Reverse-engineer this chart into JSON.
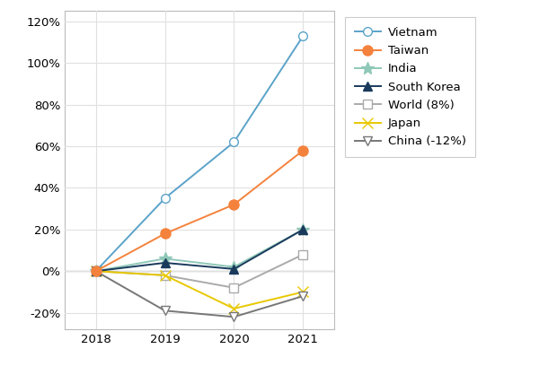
{
  "years": [
    2018,
    2019,
    2020,
    2021
  ],
  "series": [
    {
      "label": "Vietnam",
      "values": [
        0,
        35,
        62,
        113
      ],
      "color": "#5ba3c9",
      "marker": "o",
      "markerfacecolor": "white",
      "markersize": 7,
      "linewidth": 1.4,
      "zorder": 5
    },
    {
      "label": "Taiwan",
      "values": [
        0,
        18,
        32,
        58
      ],
      "color": "#f4823c",
      "marker": "o",
      "markerfacecolor": "#f4823c",
      "markersize": 8,
      "linewidth": 1.4,
      "zorder": 5
    },
    {
      "label": "India",
      "values": [
        0,
        6,
        2,
        20
      ],
      "color": "#8fc8b8",
      "marker": "*",
      "markerfacecolor": "#8fc8b8",
      "markersize": 10,
      "linewidth": 1.4,
      "zorder": 4
    },
    {
      "label": "South Korea",
      "values": [
        0,
        4,
        1,
        20
      ],
      "color": "#1a3a5c",
      "marker": "^",
      "markerfacecolor": "#1a3a5c",
      "markersize": 7,
      "linewidth": 1.4,
      "zorder": 4
    },
    {
      "label": "World (8%)",
      "values": [
        0,
        -2,
        -8,
        8
      ],
      "color": "#aaaaaa",
      "marker": "s",
      "markerfacecolor": "white",
      "markersize": 7,
      "linewidth": 1.4,
      "zorder": 3
    },
    {
      "label": "Japan",
      "values": [
        0,
        -2,
        -18,
        -10
      ],
      "color": "#e8c800",
      "marker": "x",
      "markerfacecolor": "#e8c800",
      "markersize": 8,
      "linewidth": 1.4,
      "zorder": 3
    },
    {
      "label": "China (-12%)",
      "values": [
        0,
        -19,
        -22,
        -12
      ],
      "color": "#777777",
      "marker": "v",
      "markerfacecolor": "white",
      "markersize": 7,
      "linewidth": 1.4,
      "zorder": 3
    }
  ],
  "ylim": [
    -28,
    125
  ],
  "yticks": [
    -20,
    0,
    20,
    40,
    60,
    80,
    100,
    120
  ],
  "yticklabels": [
    "-20%",
    "0%",
    "20%",
    "40%",
    "60%",
    "80%",
    "100%",
    "120%"
  ],
  "xlim": [
    2017.55,
    2021.45
  ],
  "xticks": [
    2018,
    2019,
    2020,
    2021
  ],
  "grid_color": "#e0e0e0",
  "background_color": "#ffffff",
  "zero_line_color": "#888888",
  "tick_fontsize": 9.5,
  "legend_fontsize": 9.5
}
